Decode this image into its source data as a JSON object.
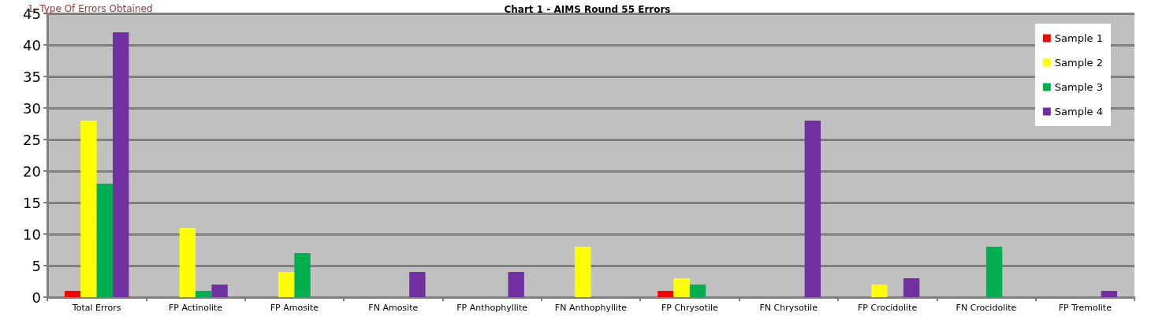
{
  "chart_data": {
    "type": "bar",
    "title": "Chart 1 - AIMS Round 55 Errors",
    "annotations": [
      "1. Type Of Errors Obtained"
    ],
    "categories": [
      "Total Errors",
      "FP Actinolite",
      "FP Amosite",
      "FN Amosite",
      "FP Anthophyllite",
      "FN Anthophyllite",
      "FP Chrysotile",
      "FN Chrysotile",
      "FP Crocidolite",
      "FN Crocidolite",
      "FP Tremolite"
    ],
    "series": [
      {
        "name": "Sample 1",
        "color": "#ff0000",
        "values": [
          1,
          null,
          null,
          null,
          null,
          null,
          1,
          null,
          null,
          null,
          null
        ]
      },
      {
        "name": "Sample 2",
        "color": "#ffff00",
        "values": [
          28,
          11,
          4,
          null,
          null,
          8,
          3,
          null,
          2,
          null,
          null
        ]
      },
      {
        "name": "Sample 3",
        "color": "#00b050",
        "values": [
          18,
          1,
          7,
          null,
          null,
          null,
          2,
          null,
          null,
          8,
          null
        ]
      },
      {
        "name": "Sample 4",
        "color": "#7030a0",
        "values": [
          42,
          2,
          null,
          4,
          4,
          null,
          null,
          28,
          3,
          null,
          1
        ]
      }
    ],
    "ylim": [
      0,
      45
    ],
    "yticks": [
      0,
      5,
      10,
      15,
      20,
      25,
      30,
      35,
      40,
      45
    ],
    "grid": "y",
    "legend": "top right"
  }
}
